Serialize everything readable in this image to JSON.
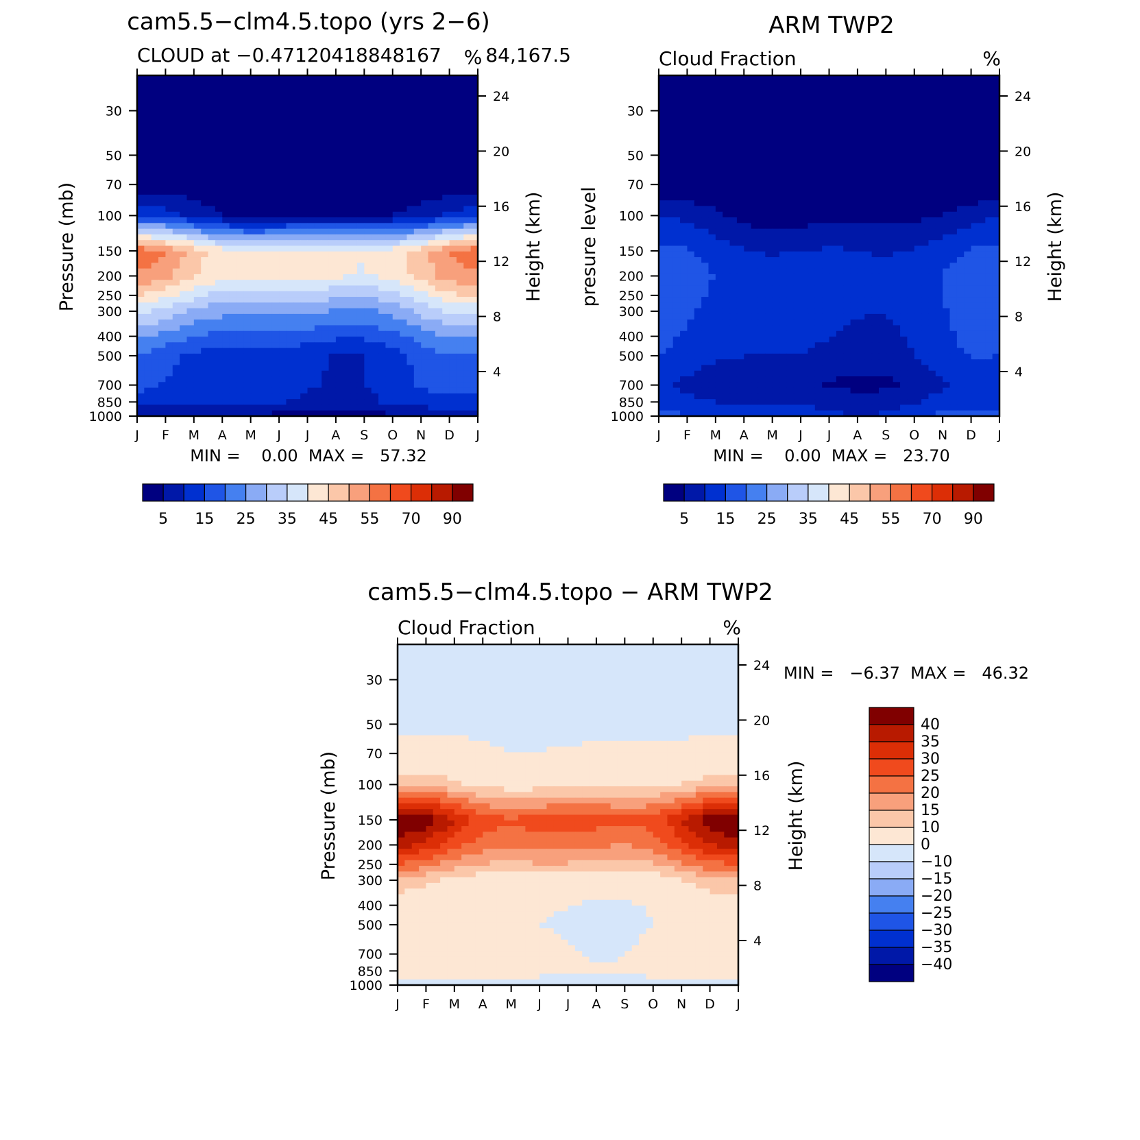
{
  "figure": {
    "colors": {
      "blue": [
        "#000080",
        "#0018a8",
        "#0030d0",
        "#1f55e6",
        "#4580f0",
        "#8aabf5",
        "#b9cdfa",
        "#d6e6fa"
      ],
      "warm": [
        "#fde7d4",
        "#fbc7a9",
        "#f8a07c",
        "#f47243",
        "#f04a1d",
        "#dc2e06",
        "#b81a00",
        "#800000"
      ]
    }
  },
  "chart_data": [
    {
      "id": "model",
      "type": "contour",
      "title": "cam5.5−clm4.5.topo (yrs 2−6)",
      "subtitle_left": "CLOUD at −0.47120418848167",
      "subtitle_right": "84,167.5",
      "units": "%",
      "ylabel": "Pressure (mb)",
      "y2label": "Height (km)",
      "x_ticks": [
        "J",
        "F",
        "M",
        "A",
        "M",
        "J",
        "J",
        "A",
        "S",
        "O",
        "N",
        "D",
        "J"
      ],
      "y_ticks": [
        "30",
        "50",
        "70",
        "100",
        "150",
        "200",
        "250",
        "300",
        "400",
        "500",
        "700",
        "850",
        "1000"
      ],
      "y2_ticks": [
        "24",
        "20",
        "16",
        "12",
        "8",
        "4"
      ],
      "stats": "MIN =    0.00  MAX =   57.32",
      "colorbar_labels": [
        "5",
        "15",
        "25",
        "35",
        "45",
        "55",
        "70",
        "90"
      ],
      "colorbar_levels": 15,
      "profile_mean": [
        0,
        0,
        1,
        7,
        46,
        45,
        36,
        29,
        20,
        14,
        13,
        11,
        4
      ],
      "profile_amp": [
        0,
        0,
        1,
        4,
        8,
        6,
        6,
        5,
        4,
        4,
        3,
        2,
        1
      ],
      "min": 0.0,
      "max": 57.32
    },
    {
      "id": "obs",
      "type": "contour",
      "title": "ARM TWP2",
      "subtitle_left": "Cloud Fraction",
      "subtitle_right": "%",
      "units": "%",
      "ylabel": "presure level",
      "y2label": "Height (km)",
      "x_ticks": [
        "J",
        "F",
        "M",
        "A",
        "M",
        "J",
        "J",
        "A",
        "S",
        "O",
        "N",
        "D",
        "J"
      ],
      "y_ticks": [
        "30",
        "50",
        "70",
        "100",
        "150",
        "200",
        "250",
        "300",
        "400",
        "500",
        "700",
        "850",
        "1000"
      ],
      "y2_ticks": [
        "24",
        "20",
        "16",
        "12",
        "8",
        "4"
      ],
      "stats": "MIN =    0.00  MAX =   23.70",
      "colorbar_labels": [
        "5",
        "15",
        "25",
        "35",
        "45",
        "55",
        "70",
        "90"
      ],
      "colorbar_levels": 15,
      "profile_mean": [
        0,
        0,
        0,
        5,
        12,
        14,
        14,
        13,
        12,
        11,
        7,
        10,
        14
      ],
      "profile_amp": [
        0,
        0,
        0,
        3,
        3,
        4,
        3,
        3,
        3,
        3,
        3,
        2,
        3
      ],
      "min": 0.0,
      "max": 23.7
    },
    {
      "id": "diff",
      "type": "contour",
      "title": "cam5.5−clm4.5.topo − ARM TWP2",
      "subtitle_left": "Cloud Fraction",
      "subtitle_right": "%",
      "units": "%",
      "ylabel": "Pressure (mb)",
      "y2label": "Height (km)",
      "x_ticks": [
        "J",
        "F",
        "M",
        "A",
        "M",
        "J",
        "J",
        "A",
        "S",
        "O",
        "N",
        "D",
        "J"
      ],
      "y_ticks": [
        "30",
        "50",
        "70",
        "100",
        "150",
        "200",
        "250",
        "300",
        "400",
        "500",
        "700",
        "850",
        "1000"
      ],
      "y2_ticks": [
        "24",
        "20",
        "16",
        "12",
        "8",
        "4"
      ],
      "stats": "MIN =   −6.37  MAX =   46.32",
      "colorbar_labels": [
        "40",
        "35",
        "30",
        "25",
        "20",
        "15",
        "10",
        "0",
        "−10",
        "−15",
        "−20",
        "−25",
        "−30",
        "−35",
        "−40"
      ],
      "profile_mean": [
        -1,
        -1,
        1,
        10,
        33,
        26,
        17,
        8,
        2,
        1,
        3,
        3,
        -3
      ],
      "profile_amp": [
        0,
        0,
        1,
        3,
        9,
        7,
        5,
        4,
        3,
        3,
        3,
        2,
        1
      ],
      "min": -6.37,
      "max": 46.32
    }
  ]
}
